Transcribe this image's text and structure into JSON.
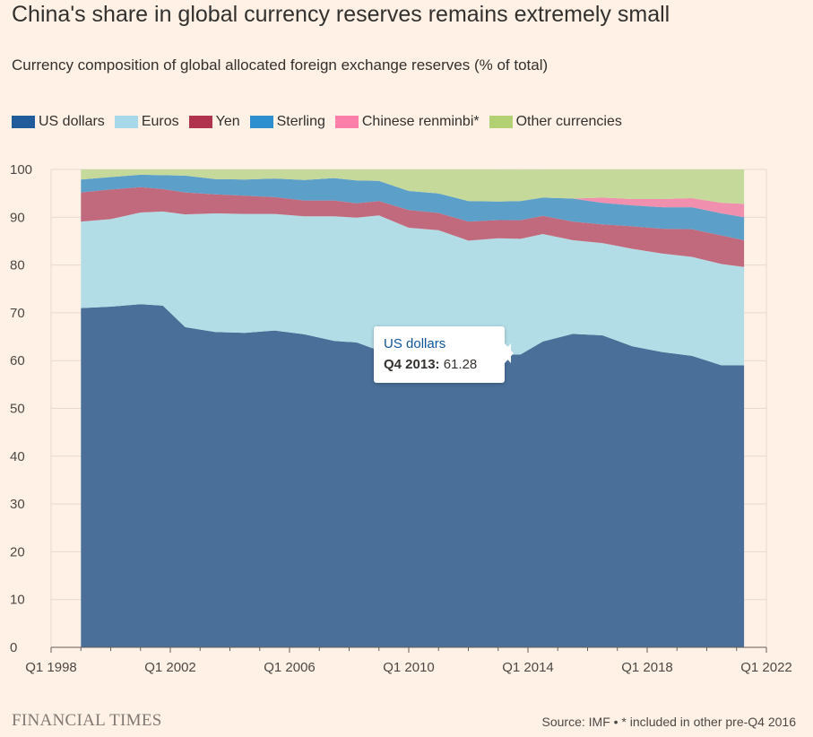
{
  "title": "China's share in global currency reserves remains extremely small",
  "subtitle": "Currency composition of global allocated foreign exchange reserves (% of total)",
  "legend": [
    {
      "label": "US dollars",
      "color": "#1f5c99"
    },
    {
      "label": "Euros",
      "color": "#a6d8ea"
    },
    {
      "label": "Yen",
      "color": "#b0334d"
    },
    {
      "label": "Sterling",
      "color": "#2e8fcf"
    },
    {
      "label": "Chinese renminbi*",
      "color": "#ff7faa"
    },
    {
      "label": "Other currencies",
      "color": "#b3d173"
    }
  ],
  "tooltip": {
    "series": "US dollars",
    "label": "Q4 2013:",
    "value": "61.28"
  },
  "footer": {
    "brand": "FINANCIAL TIMES",
    "source": "Source: IMF • * included in other pre-Q4 2016"
  },
  "chart_data": {
    "type": "area",
    "stacked": true,
    "x": [
      1999.0,
      2000.0,
      2001.0,
      2001.75,
      2002.5,
      2003.5,
      2004.5,
      2005.5,
      2006.5,
      2007.5,
      2008.25,
      2009.0,
      2010.0,
      2011.0,
      2012.0,
      2013.0,
      2013.75,
      2014.5,
      2015.5,
      2016.5,
      2017.5,
      2018.5,
      2019.5,
      2020.5,
      2021.25
    ],
    "series": [
      {
        "name": "US dollars",
        "color": "#4a6f99",
        "values": [
          71.0,
          71.3,
          71.8,
          71.5,
          67.0,
          66.0,
          65.8,
          66.3,
          65.5,
          64.1,
          63.8,
          62.1,
          61.8,
          62.6,
          61.5,
          61.2,
          61.28,
          64.0,
          65.6,
          65.3,
          63.0,
          61.8,
          61.0,
          59.0,
          59.0
        ]
      },
      {
        "name": "Euros",
        "color": "#b3dde6",
        "values": [
          18.1,
          18.3,
          19.2,
          19.7,
          23.6,
          24.8,
          24.9,
          24.4,
          24.7,
          26.1,
          26.1,
          28.3,
          26.0,
          24.7,
          23.6,
          24.4,
          24.2,
          22.5,
          19.6,
          19.3,
          20.4,
          20.6,
          20.7,
          21.2,
          20.6
        ]
      },
      {
        "name": "Yen",
        "color": "#c26a7d",
        "values": [
          6.1,
          6.2,
          5.3,
          4.7,
          4.6,
          4.0,
          3.8,
          3.5,
          3.3,
          3.3,
          3.0,
          3.0,
          3.7,
          3.6,
          4.0,
          3.8,
          3.9,
          3.8,
          3.9,
          3.9,
          4.7,
          5.2,
          5.8,
          6.0,
          5.6
        ]
      },
      {
        "name": "Sterling",
        "color": "#5c9fc9",
        "values": [
          2.7,
          2.6,
          2.6,
          2.9,
          3.5,
          3.2,
          3.4,
          3.9,
          4.3,
          4.7,
          4.8,
          4.2,
          4.0,
          4.1,
          4.3,
          3.9,
          4.0,
          3.8,
          4.8,
          4.5,
          4.4,
          4.5,
          4.6,
          4.6,
          4.8
        ]
      },
      {
        "name": "Chinese renminbi*",
        "color": "#f08fae",
        "values": [
          0,
          0,
          0,
          0,
          0,
          0,
          0,
          0,
          0,
          0,
          0,
          0,
          0,
          0,
          0,
          0,
          0,
          0,
          0,
          1.1,
          1.3,
          1.7,
          1.9,
          2.2,
          2.8
        ]
      },
      {
        "name": "Other currencies",
        "color": "#c5d99b",
        "values": [
          2.1,
          1.6,
          1.1,
          1.2,
          1.3,
          2.0,
          2.1,
          1.9,
          2.2,
          1.8,
          2.3,
          2.4,
          4.5,
          5.0,
          6.6,
          6.7,
          6.6,
          5.9,
          6.1,
          5.9,
          6.2,
          6.2,
          6.0,
          7.0,
          7.2
        ]
      }
    ],
    "xlim": [
      1998.0,
      2022.0
    ],
    "ylim": [
      0,
      100
    ],
    "yticks": [
      0,
      10,
      20,
      30,
      40,
      50,
      60,
      70,
      80,
      90,
      100
    ],
    "xticks": [
      {
        "value": 1998,
        "label": "Q1 1998"
      },
      {
        "value": 2002,
        "label": "Q1 2002"
      },
      {
        "value": 2006,
        "label": "Q1 2006"
      },
      {
        "value": 2010,
        "label": "Q1 2010"
      },
      {
        "value": 2014,
        "label": "Q1 2014"
      },
      {
        "value": 2018,
        "label": "Q1 2018"
      },
      {
        "value": 2022,
        "label": "Q1 2022"
      }
    ],
    "grid": true
  }
}
